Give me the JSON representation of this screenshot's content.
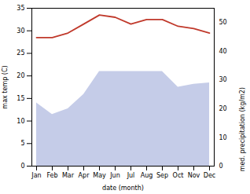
{
  "chart_data": {
    "type": "line",
    "categories": [
      "Jan",
      "Feb",
      "Mar",
      "Apr",
      "May",
      "Jun",
      "Jul",
      "Aug",
      "Sep",
      "Oct",
      "Nov",
      "Dec"
    ],
    "series": [
      {
        "type": "area",
        "axis": "y2",
        "color": "#c5cce8",
        "values": [
          22,
          18,
          20,
          25,
          33,
          33,
          33,
          33,
          33,
          27.5,
          28.5,
          29
        ]
      },
      {
        "type": "line",
        "axis": "y",
        "color": "#c0392b",
        "values": [
          28.5,
          28.5,
          29.5,
          31.5,
          33.5,
          33.0,
          31.5,
          32.5,
          32.5,
          31.0,
          30.5,
          29.5
        ]
      }
    ],
    "xlabel": "date (month)",
    "ylabel": "max temp (C)",
    "y2label": "med. precipitation (kg/m2)",
    "ylim": [
      0,
      35
    ],
    "yticks": [
      0,
      5,
      10,
      15,
      20,
      25,
      30,
      35
    ],
    "y2lim": [
      0,
      55
    ],
    "y2ticks": [
      0,
      10,
      20,
      30,
      40,
      50
    ],
    "grid": false
  }
}
